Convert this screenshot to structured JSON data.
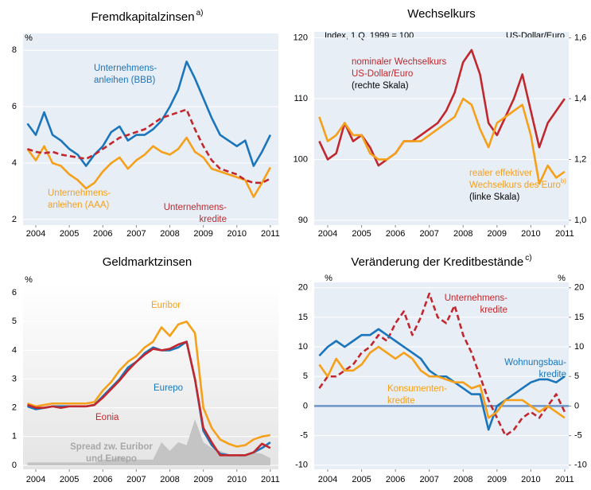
{
  "chart_data": [
    {
      "type": "line",
      "title": "Fremdkapitalzinsen",
      "title_note": "a)",
      "y_unit": "%",
      "grid": true,
      "x": [
        2003.75,
        2004,
        2004.25,
        2004.5,
        2004.75,
        2005,
        2005.25,
        2005.5,
        2005.75,
        2006,
        2006.25,
        2006.5,
        2006.75,
        2007,
        2007.25,
        2007.5,
        2007.75,
        2008,
        2008.25,
        2008.5,
        2008.75,
        2009,
        2009.25,
        2009.5,
        2009.75,
        2010,
        2010.25,
        2010.5,
        2010.75,
        2011
      ],
      "xlim": [
        2003.62,
        2011.24
      ],
      "xticks": [
        2004,
        2005,
        2006,
        2007,
        2008,
        2009,
        2010,
        2011
      ],
      "ylim": [
        1.8,
        8.6
      ],
      "yticks": [
        2,
        4,
        6,
        8
      ],
      "series": [
        {
          "name": [
            "Unternehmens-",
            "anleihen (BBB)"
          ],
          "color": "#1b75bb",
          "style": "solid",
          "values": [
            5.4,
            5.0,
            5.8,
            5.0,
            4.8,
            4.5,
            4.3,
            3.9,
            4.3,
            4.6,
            5.1,
            5.3,
            4.8,
            5.0,
            5.0,
            5.2,
            5.5,
            6.0,
            6.6,
            7.6,
            7.0,
            6.3,
            5.6,
            5.0,
            4.8,
            4.6,
            4.8,
            3.9,
            4.4,
            5.0
          ]
        },
        {
          "name": [
            "Unternehmens-",
            "anleihen (AAA)"
          ],
          "color": "#f6a01a",
          "style": "solid",
          "values": [
            4.5,
            4.1,
            4.6,
            4.0,
            3.9,
            3.6,
            3.4,
            3.1,
            3.3,
            3.7,
            4.0,
            4.2,
            3.8,
            4.1,
            4.3,
            4.6,
            4.4,
            4.3,
            4.5,
            4.9,
            4.4,
            4.2,
            3.8,
            3.7,
            3.6,
            3.5,
            3.4,
            2.8,
            3.3,
            3.85
          ]
        },
        {
          "name": [
            "Unternehmens-",
            "kredite"
          ],
          "color": "#c1272d",
          "style": "dashed",
          "values": [
            4.5,
            4.4,
            4.35,
            4.4,
            4.3,
            4.25,
            4.2,
            4.15,
            4.3,
            4.5,
            4.7,
            4.9,
            5.0,
            5.1,
            5.2,
            5.4,
            5.6,
            5.7,
            5.8,
            5.9,
            5.2,
            4.6,
            4.1,
            3.8,
            3.7,
            3.6,
            3.4,
            3.3,
            3.3,
            3.45
          ]
        }
      ]
    },
    {
      "type": "line",
      "title": "Wechselkurs",
      "subtitle": "Index, 1.Q. 1999 = 100",
      "y2_subtitle": "US-Dollar/Euro",
      "grid": true,
      "x": [
        2003.75,
        2004,
        2004.25,
        2004.5,
        2004.75,
        2005,
        2005.25,
        2005.5,
        2005.75,
        2006,
        2006.25,
        2006.5,
        2006.75,
        2007,
        2007.25,
        2007.5,
        2007.75,
        2008,
        2008.25,
        2008.5,
        2008.75,
        2009,
        2009.25,
        2009.5,
        2009.75,
        2010,
        2010.25,
        2010.5,
        2010.75,
        2011
      ],
      "xlim": [
        2003.6,
        2011.12
      ],
      "xticks": [
        2004,
        2005,
        2006,
        2007,
        2008,
        2009,
        2010,
        2011
      ],
      "ylim": [
        89.2,
        121
      ],
      "yticks": [
        90,
        100,
        110,
        120
      ],
      "y2lim": [
        0.984,
        1.62
      ],
      "y2ticks": [
        {
          "value": 1.0,
          "label": "1,0"
        },
        {
          "value": 1.2,
          "label": "1,2"
        },
        {
          "value": 1.4,
          "label": "1,4"
        },
        {
          "value": 1.6,
          "label": "1,6"
        }
      ],
      "series": [
        {
          "name": [
            "nominaler Wechselkurs",
            "US-Dollar/Euro"
          ],
          "note": "(rechte Skala)",
          "color": "#c1272d",
          "style": "solid",
          "axis": "y2",
          "values": [
            1.26,
            1.2,
            1.22,
            1.32,
            1.26,
            1.28,
            1.24,
            1.18,
            1.2,
            1.22,
            1.26,
            1.26,
            1.28,
            1.3,
            1.32,
            1.36,
            1.42,
            1.52,
            1.56,
            1.48,
            1.32,
            1.28,
            1.34,
            1.4,
            1.48,
            1.36,
            1.24,
            1.32,
            1.36,
            1.4
          ]
        },
        {
          "name": [
            "realer effektiver",
            "Wechselkurs des Euro"
          ],
          "name_note": "b)",
          "note": "(linke Skala)",
          "color": "#f6a01a",
          "style": "solid",
          "values": [
            107,
            103,
            104,
            106,
            104,
            104,
            101,
            100,
            100,
            101,
            103,
            103,
            103,
            104,
            105,
            106,
            107,
            110,
            109,
            105,
            102,
            106,
            107,
            108,
            109,
            104,
            96,
            99,
            97,
            98
          ]
        }
      ]
    },
    {
      "type": "line",
      "title": "Geldmarktzinsen",
      "y_unit": "%",
      "grid": true,
      "x": [
        2003.75,
        2004,
        2004.25,
        2004.5,
        2004.75,
        2005,
        2005.25,
        2005.5,
        2005.75,
        2006,
        2006.25,
        2006.5,
        2006.75,
        2007,
        2007.25,
        2007.5,
        2007.75,
        2008,
        2008.25,
        2008.5,
        2008.75,
        2009,
        2009.25,
        2009.5,
        2009.75,
        2010,
        2010.25,
        2010.5,
        2010.75,
        2011
      ],
      "xlim": [
        2003.62,
        2011.24
      ],
      "xticks": [
        2004,
        2005,
        2006,
        2007,
        2008,
        2009,
        2010,
        2011
      ],
      "ylim": [
        -0.14,
        6.28
      ],
      "yticks": [
        0,
        1,
        2,
        3,
        4,
        5,
        6
      ],
      "series": [
        {
          "name": [
            "Euribor"
          ],
          "color": "#f6a01a",
          "style": "solid",
          "values": [
            2.15,
            2.05,
            2.1,
            2.15,
            2.15,
            2.15,
            2.15,
            2.15,
            2.2,
            2.6,
            2.9,
            3.3,
            3.6,
            3.8,
            4.1,
            4.3,
            4.8,
            4.5,
            4.9,
            5.0,
            4.6,
            2.0,
            1.3,
            0.9,
            0.75,
            0.65,
            0.7,
            0.9,
            1.0,
            1.05
          ]
        },
        {
          "name": [
            "Eurepo"
          ],
          "color": "#1b75bb",
          "style": "solid",
          "values": [
            2.05,
            1.95,
            2.0,
            2.05,
            2.05,
            2.05,
            2.05,
            2.05,
            2.1,
            2.4,
            2.7,
            3.0,
            3.4,
            3.6,
            3.9,
            4.1,
            4.0,
            4.0,
            4.1,
            4.3,
            3.0,
            1.2,
            0.7,
            0.4,
            0.35,
            0.35,
            0.35,
            0.45,
            0.6,
            0.8
          ]
        },
        {
          "name": [
            "Eonia"
          ],
          "color": "#c1272d",
          "style": "solid",
          "values": [
            2.1,
            2.0,
            2.0,
            2.05,
            2.0,
            2.05,
            2.05,
            2.05,
            2.1,
            2.35,
            2.65,
            2.95,
            3.3,
            3.6,
            3.85,
            4.05,
            4.0,
            4.05,
            4.2,
            4.3,
            3.0,
            1.3,
            0.8,
            0.35,
            0.35,
            0.35,
            0.35,
            0.45,
            0.75,
            0.6
          ]
        },
        {
          "name": [
            "Spread zw. Euribor",
            "und Eurepo"
          ],
          "color": "#c4c4c4",
          "style": "area",
          "values": [
            0.1,
            0.1,
            0.1,
            0.1,
            0.1,
            0.1,
            0.1,
            0.1,
            0.1,
            0.2,
            0.2,
            0.3,
            0.2,
            0.2,
            0.2,
            0.2,
            0.8,
            0.5,
            0.8,
            0.7,
            1.6,
            0.8,
            0.6,
            0.5,
            0.4,
            0.3,
            0.35,
            0.45,
            0.4,
            0.25
          ]
        }
      ]
    },
    {
      "type": "line",
      "title": "Veränderung der Kreditbestände",
      "title_note": "c)",
      "y_unit": "%",
      "y2_unit": "%",
      "grid": true,
      "reference_line": 0,
      "reference_color": "#6f94c8",
      "x": [
        2003.75,
        2004,
        2004.25,
        2004.5,
        2004.75,
        2005,
        2005.25,
        2005.5,
        2005.75,
        2006,
        2006.25,
        2006.5,
        2006.75,
        2007,
        2007.25,
        2007.5,
        2007.75,
        2008,
        2008.25,
        2008.5,
        2008.75,
        2009,
        2009.25,
        2009.5,
        2009.75,
        2010,
        2010.25,
        2010.5,
        2010.75,
        2011
      ],
      "xlim": [
        2003.6,
        2011.12
      ],
      "xticks": [
        2004,
        2005,
        2006,
        2007,
        2008,
        2009,
        2010,
        2011
      ],
      "ylim": [
        -10.7,
        20.9
      ],
      "yticks": [
        -10,
        -5,
        0,
        5,
        10,
        15,
        20
      ],
      "y2lim": [
        -10.7,
        20.9
      ],
      "y2ticks": [
        -10,
        -5,
        0,
        5,
        10,
        15,
        20
      ],
      "series": [
        {
          "name": [
            "Unternehmens-",
            "kredite"
          ],
          "color": "#c1272d",
          "style": "dashed",
          "values": [
            3,
            5,
            5,
            6,
            7,
            9,
            10,
            12,
            11,
            14,
            16,
            12,
            15,
            19,
            15,
            14,
            17,
            12,
            9,
            5,
            1,
            -2,
            -5,
            -4,
            -2,
            -1,
            -2,
            0,
            2,
            -1
          ]
        },
        {
          "name": [
            "Wohnungsbau-",
            "kredite"
          ],
          "color": "#1b75bb",
          "style": "solid",
          "values": [
            8.5,
            10,
            11,
            10,
            11,
            12,
            12,
            13,
            12,
            11,
            10,
            9,
            8,
            6,
            5,
            5,
            4,
            3,
            2,
            2,
            -4,
            0,
            1,
            2,
            3,
            4,
            4.5,
            4.5,
            4,
            5
          ]
        },
        {
          "name": [
            "Konsumenten-",
            "kredite"
          ],
          "color": "#f6a01a",
          "style": "solid",
          "values": [
            7,
            5,
            8,
            6,
            6,
            7,
            9,
            10,
            9,
            8,
            9,
            8,
            6,
            5,
            5,
            4.5,
            4,
            4,
            3,
            3.5,
            -2,
            -1,
            1,
            1,
            1,
            0,
            -1,
            0,
            -1,
            -2
          ]
        }
      ]
    }
  ]
}
